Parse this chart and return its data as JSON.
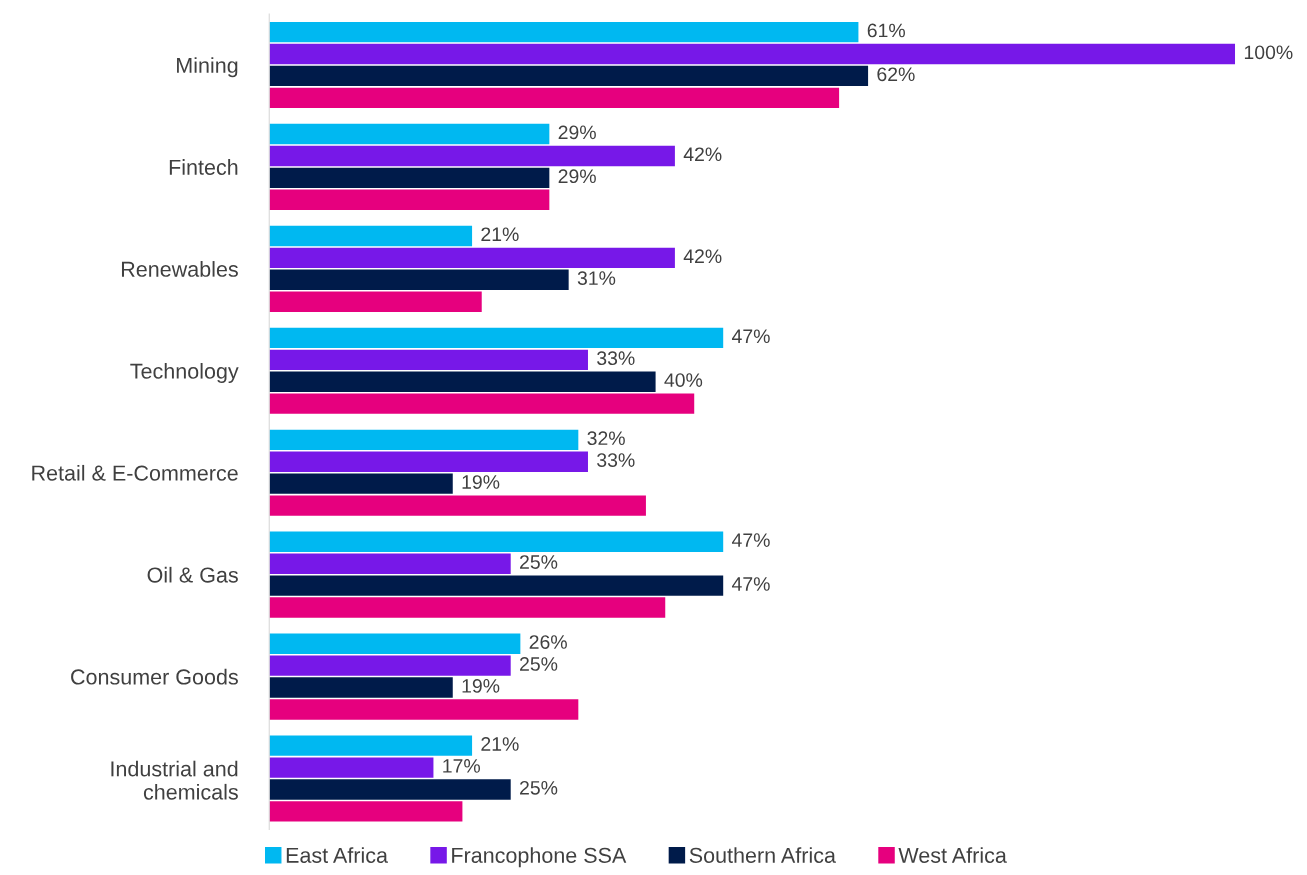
{
  "chart_data": {
    "type": "bar",
    "orientation": "horizontal",
    "categories": [
      "Mining",
      "Fintech",
      "Renewables",
      "Technology",
      "Retail & E-Commerce",
      "Oil & Gas",
      "Consumer Goods",
      "Industrial and\nchemicals"
    ],
    "series": [
      {
        "name": "East Africa",
        "color": "#00b8f1",
        "values": [
          61,
          29,
          21,
          47,
          32,
          47,
          26,
          21
        ],
        "value_labels": [
          "61%",
          "29%",
          "21%",
          "47%",
          "32%",
          "47%",
          "26%",
          "21%"
        ]
      },
      {
        "name": "Francophone SSA",
        "color": "#7718e8",
        "values": [
          100,
          42,
          42,
          33,
          33,
          25,
          25,
          17
        ],
        "value_labels": [
          "100%",
          "42%",
          "42%",
          "33%",
          "33%",
          "25%",
          "25%",
          "17%"
        ]
      },
      {
        "name": "Southern Africa",
        "color": "#001b4a",
        "values": [
          62,
          29,
          31,
          40,
          19,
          47,
          19,
          25
        ],
        "value_labels": [
          "62%",
          "29%",
          "31%",
          "40%",
          "19%",
          "47%",
          "19%",
          "25%"
        ]
      },
      {
        "name": "West Africa",
        "color": "#e6007e",
        "values": [
          59,
          29,
          22,
          44,
          39,
          41,
          32,
          20
        ],
        "value_labels": [
          null,
          null,
          null,
          null,
          null,
          null,
          null,
          null
        ]
      }
    ],
    "xlim": [
      0,
      100
    ],
    "tick_labels": "y",
    "legend": "bottom"
  }
}
